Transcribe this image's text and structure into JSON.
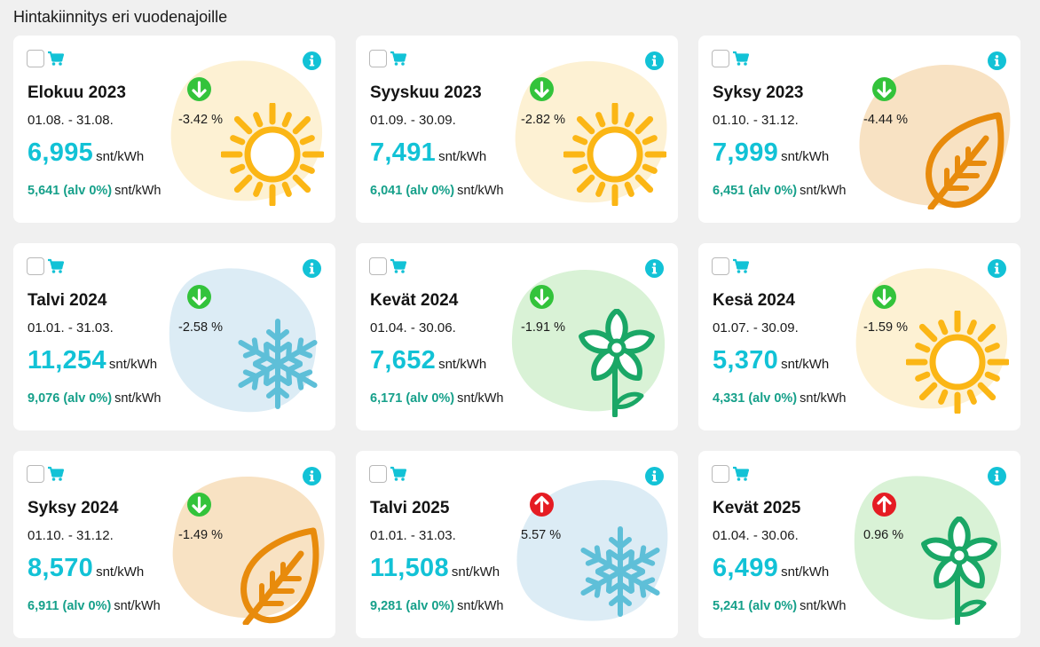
{
  "page_title": "Hintakiinnitys eri vuodenajoille",
  "colors": {
    "price": "#12c2d6",
    "vat": "#16a08a",
    "down": "#33c33b",
    "up": "#e51c23",
    "info": "#12c2d6",
    "cart": "#12c2d6"
  },
  "cards": [
    {
      "title": "Elokuu 2023",
      "dates": "01.08. - 31.08.",
      "price": "6,995",
      "unit": "snt/kWh",
      "vat_price": "5,641 (alv 0%)",
      "vat_unit": "snt/kWh",
      "change": "-3.42 %",
      "direction": "down",
      "season_icon": "sun-icon"
    },
    {
      "title": "Syyskuu 2023",
      "dates": "01.09. - 30.09.",
      "price": "7,491",
      "unit": "snt/kWh",
      "vat_price": "6,041 (alv 0%)",
      "vat_unit": "snt/kWh",
      "change": "-2.82 %",
      "direction": "down",
      "season_icon": "sun-icon"
    },
    {
      "title": "Syksy 2023",
      "dates": "01.10. - 31.12.",
      "price": "7,999",
      "unit": "snt/kWh",
      "vat_price": "6,451 (alv 0%)",
      "vat_unit": "snt/kWh",
      "change": "-4.44 %",
      "direction": "down",
      "season_icon": "leaf-icon"
    },
    {
      "title": "Talvi 2024",
      "dates": "01.01. - 31.03.",
      "price": "11,254",
      "unit": "snt/kWh",
      "vat_price": "9,076 (alv 0%)",
      "vat_unit": "snt/kWh",
      "change": "-2.58 %",
      "direction": "down",
      "season_icon": "snowflake-icon"
    },
    {
      "title": "Kevät 2024",
      "dates": "01.04. - 30.06.",
      "price": "7,652",
      "unit": "snt/kWh",
      "vat_price": "6,171 (alv 0%)",
      "vat_unit": "snt/kWh",
      "change": "-1.91 %",
      "direction": "down",
      "season_icon": "flower-icon"
    },
    {
      "title": "Kesä 2024",
      "dates": "01.07. - 30.09.",
      "price": "5,370",
      "unit": "snt/kWh",
      "vat_price": "4,331 (alv 0%)",
      "vat_unit": "snt/kWh",
      "change": "-1.59 %",
      "direction": "down",
      "season_icon": "sun-icon"
    },
    {
      "title": "Syksy 2024",
      "dates": "01.10. - 31.12.",
      "price": "8,570",
      "unit": "snt/kWh",
      "vat_price": "6,911 (alv 0%)",
      "vat_unit": "snt/kWh",
      "change": "-1.49 %",
      "direction": "down",
      "season_icon": "leaf-icon"
    },
    {
      "title": "Talvi 2025",
      "dates": "01.01. - 31.03.",
      "price": "11,508",
      "unit": "snt/kWh",
      "vat_price": "9,281 (alv 0%)",
      "vat_unit": "snt/kWh",
      "change": "5.57 %",
      "direction": "up",
      "season_icon": "snowflake-icon"
    },
    {
      "title": "Kevät 2025",
      "dates": "01.04. - 30.06.",
      "price": "6,499",
      "unit": "snt/kWh",
      "vat_price": "5,241 (alv 0%)",
      "vat_unit": "snt/kWh",
      "change": "0.96 %",
      "direction": "up",
      "season_icon": "flower-icon"
    }
  ]
}
